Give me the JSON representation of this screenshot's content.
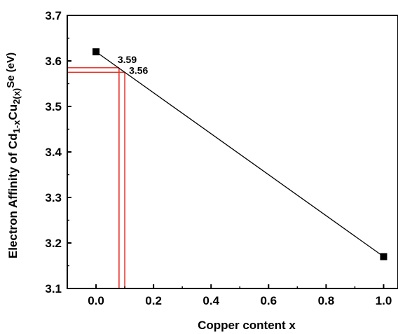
{
  "chart_data": {
    "type": "line",
    "title": "",
    "xlabel": "Copper content x",
    "ylabel": {
      "prefix": "Electron Affinity of Cd",
      "sub1": "1-x",
      "mid": "Cu",
      "sub2": "2(x)",
      "suffix": "Se  (eV)"
    },
    "xlim": [
      -0.1,
      1.05
    ],
    "ylim": [
      3.1,
      3.7
    ],
    "xticks": [
      0.0,
      0.2,
      0.4,
      0.6,
      0.8,
      1.0
    ],
    "xtick_labels": [
      "0.0",
      "0.2",
      "0.4",
      "0.6",
      "0.8",
      "1.0"
    ],
    "yticks": [
      3.1,
      3.2,
      3.3,
      3.4,
      3.5,
      3.6,
      3.7
    ],
    "ytick_labels": [
      "3.1",
      "3.2",
      "3.3",
      "3.4",
      "3.5",
      "3.6",
      "3.7"
    ],
    "series": [
      {
        "x": [
          0.0,
          1.0
        ],
        "y": [
          3.62,
          3.17
        ],
        "color": "#000000",
        "marker": "square"
      }
    ],
    "annotations": [
      {
        "text": "3.59",
        "x": 0.08,
        "y": 3.585,
        "color": "#e8342b"
      },
      {
        "text": "3.56",
        "x": 0.1,
        "y": 3.575,
        "color": "#e8342b"
      }
    ],
    "grid": false,
    "legend": "none"
  }
}
